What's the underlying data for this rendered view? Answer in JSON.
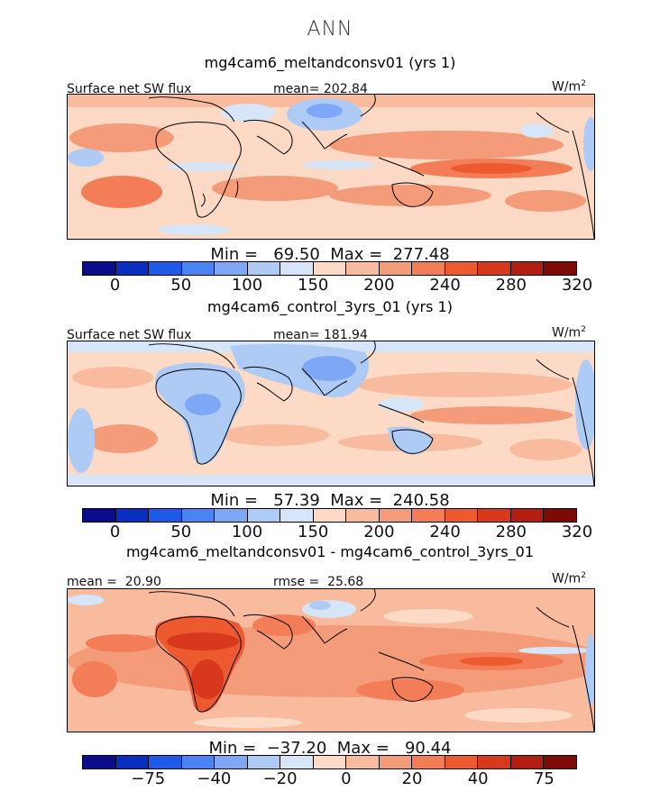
{
  "season": "ANN",
  "palette": [
    "#0a0c8c",
    "#0a2ec0",
    "#1d5ae8",
    "#4a84f4",
    "#7ea8f6",
    "#aecbf6",
    "#d6e6f8",
    "#fcdac6",
    "#f8bb9e",
    "#f49c7a",
    "#f27d56",
    "#ee5a30",
    "#d8391c",
    "#b21e10",
    "#7e0a06"
  ],
  "panels": [
    {
      "title": "mg4cam6_meltandconsv01 (yrs 1)",
      "left_label": "Surface net SW flux",
      "mid_label": "mean= 202.84",
      "units": "W/m",
      "units_sup": "2",
      "stats_text": "Min =   69.50  Max =  277.48",
      "ticks": [
        "0",
        "50",
        "100",
        "150",
        "200",
        "240",
        "280",
        "320"
      ]
    },
    {
      "title": "mg4cam6_control_3yrs_01 (yrs 1)",
      "left_label": "Surface net SW flux",
      "mid_label": "mean= 181.94",
      "units": "W/m",
      "units_sup": "2",
      "stats_text": "Min =   57.39  Max =  240.58",
      "ticks": [
        "0",
        "50",
        "100",
        "150",
        "200",
        "240",
        "280",
        "320"
      ]
    },
    {
      "title": "mg4cam6_meltandconsv01 - mg4cam6_control_3yrs_01",
      "left_label": "mean =  20.90",
      "mid_label": "rmse =  25.68",
      "units": "W/m",
      "units_sup": "2",
      "stats_text": "Min =  −37.20  Max =   90.44",
      "ticks": [
        "−75",
        "−40",
        "−20",
        "0",
        "20",
        "40",
        "75"
      ]
    }
  ]
}
